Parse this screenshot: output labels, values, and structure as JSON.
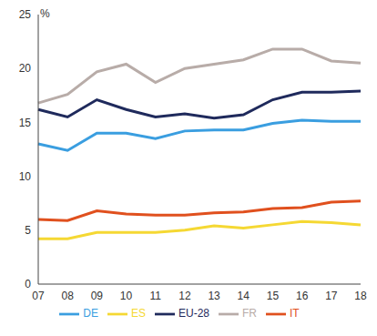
{
  "chart_data": {
    "type": "line",
    "y_label": "%",
    "categories": [
      "07",
      "08",
      "09",
      "10",
      "11",
      "12",
      "13",
      "14",
      "15",
      "16",
      "17",
      "18"
    ],
    "series": [
      {
        "name": "EU-28",
        "color": "#1f2a5c",
        "values": [
          16.2,
          15.5,
          17.1,
          16.2,
          15.5,
          15.8,
          15.4,
          15.7,
          17.1,
          17.8,
          17.8,
          17.9
        ]
      },
      {
        "name": "ES",
        "color": "#f5d833",
        "values": [
          4.2,
          4.2,
          4.8,
          4.8,
          4.8,
          5.0,
          5.4,
          5.2,
          5.5,
          5.8,
          5.7,
          5.5
        ]
      },
      {
        "name": "DE",
        "color": "#3a9ee0",
        "values": [
          13.0,
          12.4,
          14.0,
          14.0,
          13.5,
          14.2,
          14.3,
          14.3,
          14.9,
          15.2,
          15.1,
          15.1
        ]
      },
      {
        "name": "FR",
        "color": "#b8aca8",
        "values": [
          16.8,
          17.6,
          19.7,
          20.4,
          18.7,
          20.0,
          20.4,
          20.8,
          21.8,
          21.8,
          20.7,
          20.5
        ]
      },
      {
        "name": "IT",
        "color": "#e0501e",
        "values": [
          6.0,
          5.9,
          6.8,
          6.5,
          6.4,
          6.4,
          6.6,
          6.7,
          7.0,
          7.1,
          7.6,
          7.7
        ]
      }
    ],
    "ylim": [
      0,
      25
    ],
    "yticks": [
      0,
      5,
      10,
      15,
      20,
      25
    ],
    "grid": false,
    "legend": "bottom"
  }
}
